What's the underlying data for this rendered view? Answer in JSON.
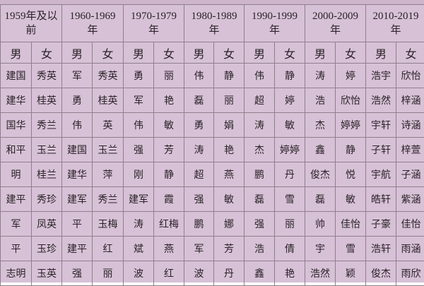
{
  "eras": [
    [
      "1959年及以",
      "前"
    ],
    [
      "1960-1969",
      "年"
    ],
    [
      "1970-1979",
      "年"
    ],
    [
      "1980-1989",
      "年"
    ],
    [
      "1990-1999",
      "年"
    ],
    [
      "2000-2009",
      "年"
    ],
    [
      "2010-2019",
      "年"
    ]
  ],
  "sex_labels": [
    "男",
    "女"
  ],
  "rows": [
    [
      "建国",
      "秀英",
      "军",
      "秀英",
      "勇",
      "丽",
      "伟",
      "静",
      "伟",
      "静",
      "涛",
      "婷",
      "浩宇",
      "欣怡"
    ],
    [
      "建华",
      "桂英",
      "勇",
      "桂英",
      "军",
      "艳",
      "磊",
      "丽",
      "超",
      "婷",
      "浩",
      "欣怡",
      "浩然",
      "梓涵"
    ],
    [
      "国华",
      "秀兰",
      "伟",
      "英",
      "伟",
      "敏",
      "勇",
      "娟",
      "涛",
      "敏",
      "杰",
      "婷婷",
      "宇轩",
      "诗涵"
    ],
    [
      "和平",
      "玉兰",
      "建国",
      "玉兰",
      "强",
      "芳",
      "涛",
      "艳",
      "杰",
      "婷婷",
      "鑫",
      "静",
      "子轩",
      "梓萱"
    ],
    [
      "明",
      "桂兰",
      "建华",
      "萍",
      "刚",
      "静",
      "超",
      "燕",
      "鹏",
      "丹",
      "俊杰",
      "悦",
      "宇航",
      "子涵"
    ],
    [
      "建平",
      "秀珍",
      "建军",
      "秀兰",
      "建军",
      "霞",
      "强",
      "敏",
      "磊",
      "雪",
      "磊",
      "敏",
      "皓轩",
      "紫涵"
    ],
    [
      "军",
      "凤英",
      "平",
      "玉梅",
      "涛",
      "红梅",
      "鹏",
      "娜",
      "强",
      "丽",
      "帅",
      "佳怡",
      "子豪",
      "佳怡"
    ],
    [
      "平",
      "玉珍",
      "建平",
      "红",
      "斌",
      "燕",
      "军",
      "芳",
      "浩",
      "倩",
      "宇",
      "雪",
      "浩轩",
      "雨涵"
    ],
    [
      "志明",
      "玉英",
      "强",
      "丽",
      "波",
      "红",
      "波",
      "丹",
      "鑫",
      "艳",
      "浩然",
      "颖",
      "俊杰",
      "雨欣"
    ]
  ]
}
